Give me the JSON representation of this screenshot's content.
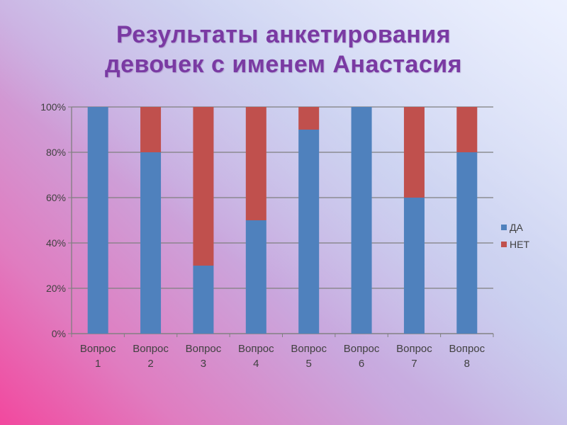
{
  "title": {
    "line1": "Результаты анкетирования",
    "line2": "девочек с именем Анастасия"
  },
  "chart_data": {
    "type": "bar",
    "stacked": true,
    "percent": true,
    "title": "Результаты анкетирования девочек с именем Анастасия",
    "categories": [
      [
        "Вопрос",
        "1"
      ],
      [
        "Вопрос",
        "2"
      ],
      [
        "Вопрос",
        "3"
      ],
      [
        "Вопрос",
        "4"
      ],
      [
        "Вопрос",
        "5"
      ],
      [
        "Вопрос",
        "6"
      ],
      [
        "Вопрос",
        "7"
      ],
      [
        "Вопрос",
        "8"
      ]
    ],
    "series": [
      {
        "name": "ДА",
        "color": "#4f81bd",
        "values": [
          100,
          80,
          30,
          50,
          90,
          100,
          60,
          80
        ]
      },
      {
        "name": "НЕТ",
        "color": "#c0504d",
        "values": [
          0,
          20,
          70,
          50,
          10,
          0,
          40,
          20
        ]
      }
    ],
    "ylim": [
      0,
      100
    ],
    "yticks": [
      "0%",
      "20%",
      "40%",
      "60%",
      "80%",
      "100%"
    ],
    "grid": true,
    "legend_position": "right"
  }
}
